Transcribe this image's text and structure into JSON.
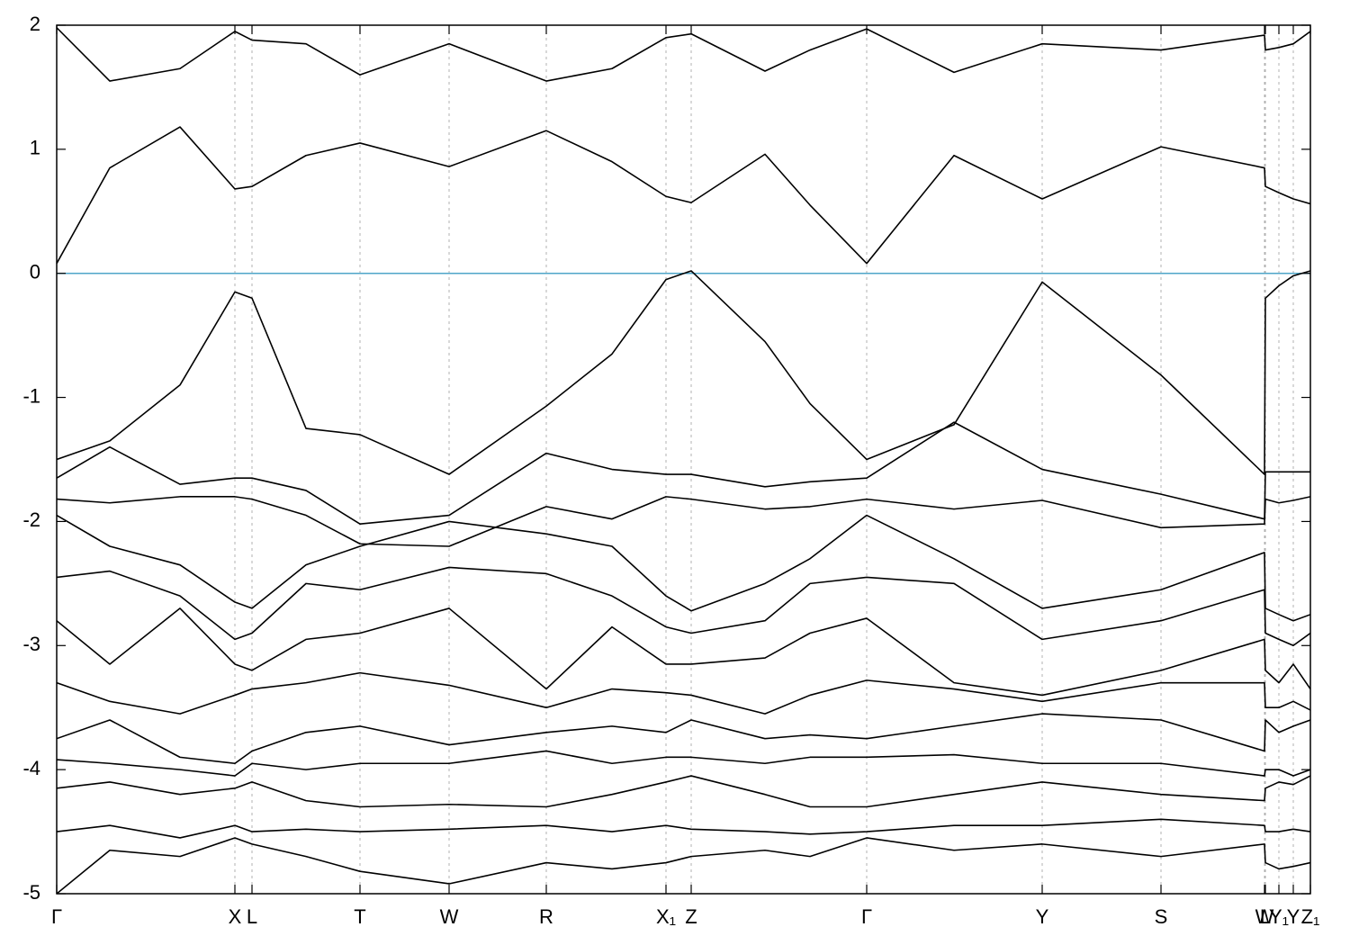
{
  "chart_data": {
    "type": "line",
    "x": [
      0,
      0.295,
      0.685,
      0.99,
      1.085,
      1.385,
      1.685,
      2.18,
      2.72,
      3.085,
      3.385,
      3.525,
      3.935,
      4.185,
      4.5,
      4.985,
      5.475,
      6.135,
      6.71,
      6.715,
      6.79,
      6.87,
      6.965
    ],
    "xlim": [
      0,
      6.965
    ],
    "xticks": [
      {
        "value": 0,
        "label": "Γ"
      },
      {
        "value": 0.99,
        "label": "X"
      },
      {
        "value": 1.085,
        "label": "L"
      },
      {
        "value": 1.685,
        "label": "T"
      },
      {
        "value": 2.18,
        "label": "W"
      },
      {
        "value": 2.72,
        "label": "R"
      },
      {
        "value": 3.385,
        "label": "X₁"
      },
      {
        "value": 3.525,
        "label": "Z"
      },
      {
        "value": 4.5,
        "label": "Γ"
      },
      {
        "value": 5.475,
        "label": "Y"
      },
      {
        "value": 6.135,
        "label": "S"
      },
      {
        "value": 6.71,
        "label": "W"
      },
      {
        "value": 6.715,
        "label": "L"
      },
      {
        "value": 6.79,
        "label": "Y₁"
      },
      {
        "value": 6.87,
        "label": "Y"
      },
      {
        "value": 6.965,
        "label": "Z₁"
      }
    ],
    "ylim": [
      -5,
      2
    ],
    "yticks": [
      -5,
      -4,
      -3,
      -2,
      -1,
      0,
      1,
      2
    ],
    "grid": true,
    "line_color": "#000000",
    "fermi_level": 0,
    "fermi_color": "#4fa6c8",
    "series": [
      {
        "values": [
          1.98,
          1.55,
          1.65,
          1.95,
          1.88,
          1.85,
          1.6,
          1.85,
          1.55,
          1.65,
          1.9,
          1.93,
          1.63,
          1.8,
          1.97,
          1.62,
          1.85,
          1.8,
          1.92,
          1.8,
          1.82,
          1.85,
          1.95
        ]
      },
      {
        "values": [
          0.08,
          0.85,
          1.18,
          0.68,
          0.7,
          0.95,
          1.05,
          0.86,
          1.15,
          0.9,
          0.62,
          0.57,
          0.96,
          0.55,
          0.08,
          0.95,
          0.6,
          1.02,
          0.85,
          0.7,
          0.65,
          0.6,
          0.56
        ]
      },
      {
        "values": [
          -1.5,
          -1.35,
          -0.9,
          -0.15,
          -0.2,
          -1.25,
          -1.3,
          -1.62,
          -1.07,
          -0.65,
          -0.05,
          0.02,
          -0.55,
          -1.05,
          -1.5,
          -1.22,
          -0.07,
          -0.82,
          -1.62,
          -0.2,
          -0.1,
          -0.02,
          0.02
        ]
      },
      {
        "values": [
          -1.65,
          -1.4,
          -1.7,
          -1.65,
          -1.65,
          -1.75,
          -2.02,
          -1.95,
          -1.45,
          -1.58,
          -1.62,
          -1.62,
          -1.72,
          -1.68,
          -1.65,
          -1.2,
          -1.58,
          -1.78,
          -1.98,
          -1.6,
          -1.6,
          -1.6,
          -1.6
        ]
      },
      {
        "values": [
          -1.82,
          -1.85,
          -1.8,
          -1.8,
          -1.82,
          -1.95,
          -2.18,
          -2.2,
          -1.88,
          -1.98,
          -1.8,
          -1.82,
          -1.9,
          -1.88,
          -1.82,
          -1.9,
          -1.83,
          -2.05,
          -2.02,
          -1.82,
          -1.85,
          -1.83,
          -1.8
        ]
      },
      {
        "values": [
          -1.95,
          -2.2,
          -2.35,
          -2.65,
          -2.7,
          -2.35,
          -2.2,
          -2.0,
          -2.1,
          -2.2,
          -2.6,
          -2.72,
          -2.5,
          -2.3,
          -1.95,
          -2.3,
          -2.7,
          -2.55,
          -2.25,
          -2.7,
          -2.75,
          -2.8,
          -2.75
        ]
      },
      {
        "values": [
          -2.45,
          -2.4,
          -2.6,
          -2.95,
          -2.9,
          -2.5,
          -2.55,
          -2.37,
          -2.42,
          -2.6,
          -2.85,
          -2.9,
          -2.8,
          -2.5,
          -2.45,
          -2.5,
          -2.95,
          -2.8,
          -2.55,
          -2.9,
          -2.95,
          -3.0,
          -2.9
        ]
      },
      {
        "values": [
          -2.8,
          -3.15,
          -2.7,
          -3.15,
          -3.2,
          -2.95,
          -2.9,
          -2.7,
          -3.35,
          -2.85,
          -3.15,
          -3.15,
          -3.1,
          -2.9,
          -2.78,
          -3.3,
          -3.4,
          -3.2,
          -2.95,
          -3.2,
          -3.3,
          -3.15,
          -3.35
        ]
      },
      {
        "values": [
          -3.3,
          -3.45,
          -3.55,
          -3.4,
          -3.35,
          -3.3,
          -3.22,
          -3.32,
          -3.5,
          -3.35,
          -3.38,
          -3.4,
          -3.55,
          -3.4,
          -3.28,
          -3.35,
          -3.45,
          -3.3,
          -3.3,
          -3.5,
          -3.5,
          -3.45,
          -3.52
        ]
      },
      {
        "values": [
          -3.75,
          -3.6,
          -3.9,
          -3.95,
          -3.85,
          -3.7,
          -3.65,
          -3.8,
          -3.7,
          -3.65,
          -3.7,
          -3.6,
          -3.75,
          -3.72,
          -3.75,
          -3.65,
          -3.55,
          -3.6,
          -3.85,
          -3.6,
          -3.7,
          -3.65,
          -3.6
        ]
      },
      {
        "values": [
          -3.92,
          -3.95,
          -4.0,
          -4.05,
          -3.95,
          -4.0,
          -3.95,
          -3.95,
          -3.85,
          -3.95,
          -3.9,
          -3.9,
          -3.95,
          -3.9,
          -3.9,
          -3.88,
          -3.95,
          -3.95,
          -4.05,
          -4.0,
          -4.0,
          -4.05,
          -4.0
        ]
      },
      {
        "values": [
          -4.15,
          -4.1,
          -4.2,
          -4.15,
          -4.1,
          -4.25,
          -4.3,
          -4.28,
          -4.3,
          -4.2,
          -4.1,
          -4.05,
          -4.2,
          -4.3,
          -4.3,
          -4.2,
          -4.1,
          -4.2,
          -4.25,
          -4.15,
          -4.1,
          -4.12,
          -4.05
        ]
      },
      {
        "values": [
          -4.5,
          -4.45,
          -4.55,
          -4.45,
          -4.5,
          -4.48,
          -4.5,
          -4.48,
          -4.45,
          -4.5,
          -4.45,
          -4.48,
          -4.5,
          -4.52,
          -4.5,
          -4.45,
          -4.45,
          -4.4,
          -4.45,
          -4.5,
          -4.5,
          -4.48,
          -4.5
        ]
      },
      {
        "values": [
          -5.0,
          -4.65,
          -4.7,
          -4.55,
          -4.6,
          -4.7,
          -4.82,
          -4.92,
          -4.75,
          -4.8,
          -4.75,
          -4.7,
          -4.65,
          -4.7,
          -4.55,
          -4.65,
          -4.6,
          -4.7,
          -4.6,
          -4.75,
          -4.8,
          -4.78,
          -4.75
        ]
      }
    ]
  }
}
